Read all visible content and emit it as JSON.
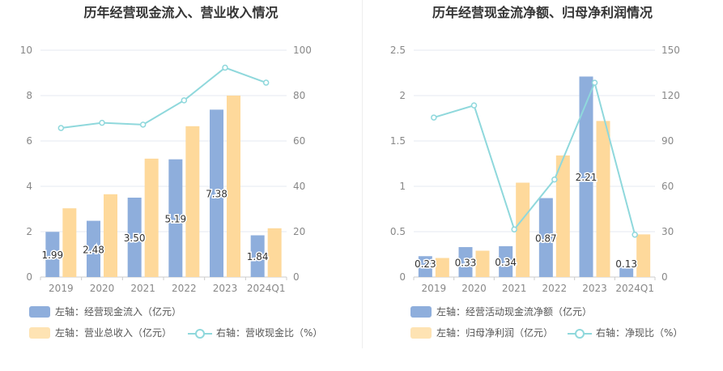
{
  "chart_data": [
    {
      "type": "bar",
      "title": "历年经营现金流入、营业收入情况",
      "categories": [
        "2019",
        "2020",
        "2021",
        "2022",
        "2023",
        "2024Q1"
      ],
      "ylim_left": [
        0,
        10
      ],
      "yticks_left": [
        "0",
        "2",
        "4",
        "6",
        "8",
        "10"
      ],
      "ylim_right": [
        0,
        100
      ],
      "yticks_right": [
        "0",
        "20",
        "40",
        "60",
        "80",
        "100"
      ],
      "series": [
        {
          "name": "左轴：经营现金流入（亿元）",
          "axis": "left",
          "kind": "bar",
          "color": "#8eaedc",
          "values": [
            1.99,
            2.48,
            3.5,
            5.19,
            7.38,
            1.84
          ],
          "labels": [
            "1.99",
            "2.48",
            "3.50",
            "5.19",
            "7.38",
            "1.84"
          ]
        },
        {
          "name": "左轴：营业总收入（亿元）",
          "axis": "left",
          "kind": "bar",
          "color": "#fed99b",
          "values": [
            3.03,
            3.65,
            5.22,
            6.65,
            8.0,
            2.15
          ]
        },
        {
          "name": "右轴：营收现金比（%）",
          "axis": "right",
          "kind": "line",
          "color": "#8fd8dc",
          "values": [
            65.7,
            68.0,
            67.2,
            77.9,
            92.3,
            85.7
          ]
        }
      ],
      "legend_position": "bottom",
      "grid": true
    },
    {
      "type": "bar",
      "title": "历年经营现金流净额、归母净利润情况",
      "categories": [
        "2019",
        "2020",
        "2021",
        "2022",
        "2023",
        "2024Q1"
      ],
      "ylim_left": [
        0,
        2.5
      ],
      "yticks_left": [
        "0",
        "0.5",
        "1",
        "1.5",
        "2",
        "2.5"
      ],
      "ylim_right": [
        0,
        150
      ],
      "yticks_right": [
        "0",
        "30",
        "60",
        "90",
        "120",
        "150"
      ],
      "series": [
        {
          "name": "左轴：经营活动现金流净额（亿元）",
          "axis": "left",
          "kind": "bar",
          "color": "#8eaedc",
          "values": [
            0.23,
            0.33,
            0.34,
            0.87,
            2.21,
            0.13
          ],
          "labels": [
            "0.23",
            "0.33",
            "0.34",
            "0.87",
            "2.21",
            "0.13"
          ]
        },
        {
          "name": "左轴：归母净利润（亿元）",
          "axis": "left",
          "kind": "bar",
          "color": "#fed99b",
          "values": [
            0.21,
            0.29,
            1.04,
            1.34,
            1.72,
            0.47
          ]
        },
        {
          "name": "右轴：净现比（%）",
          "axis": "right",
          "kind": "line",
          "color": "#8fd8dc",
          "values": [
            105.5,
            113.5,
            31.5,
            64.5,
            128.5,
            28.0
          ]
        }
      ],
      "legend_position": "bottom",
      "grid": true
    }
  ]
}
